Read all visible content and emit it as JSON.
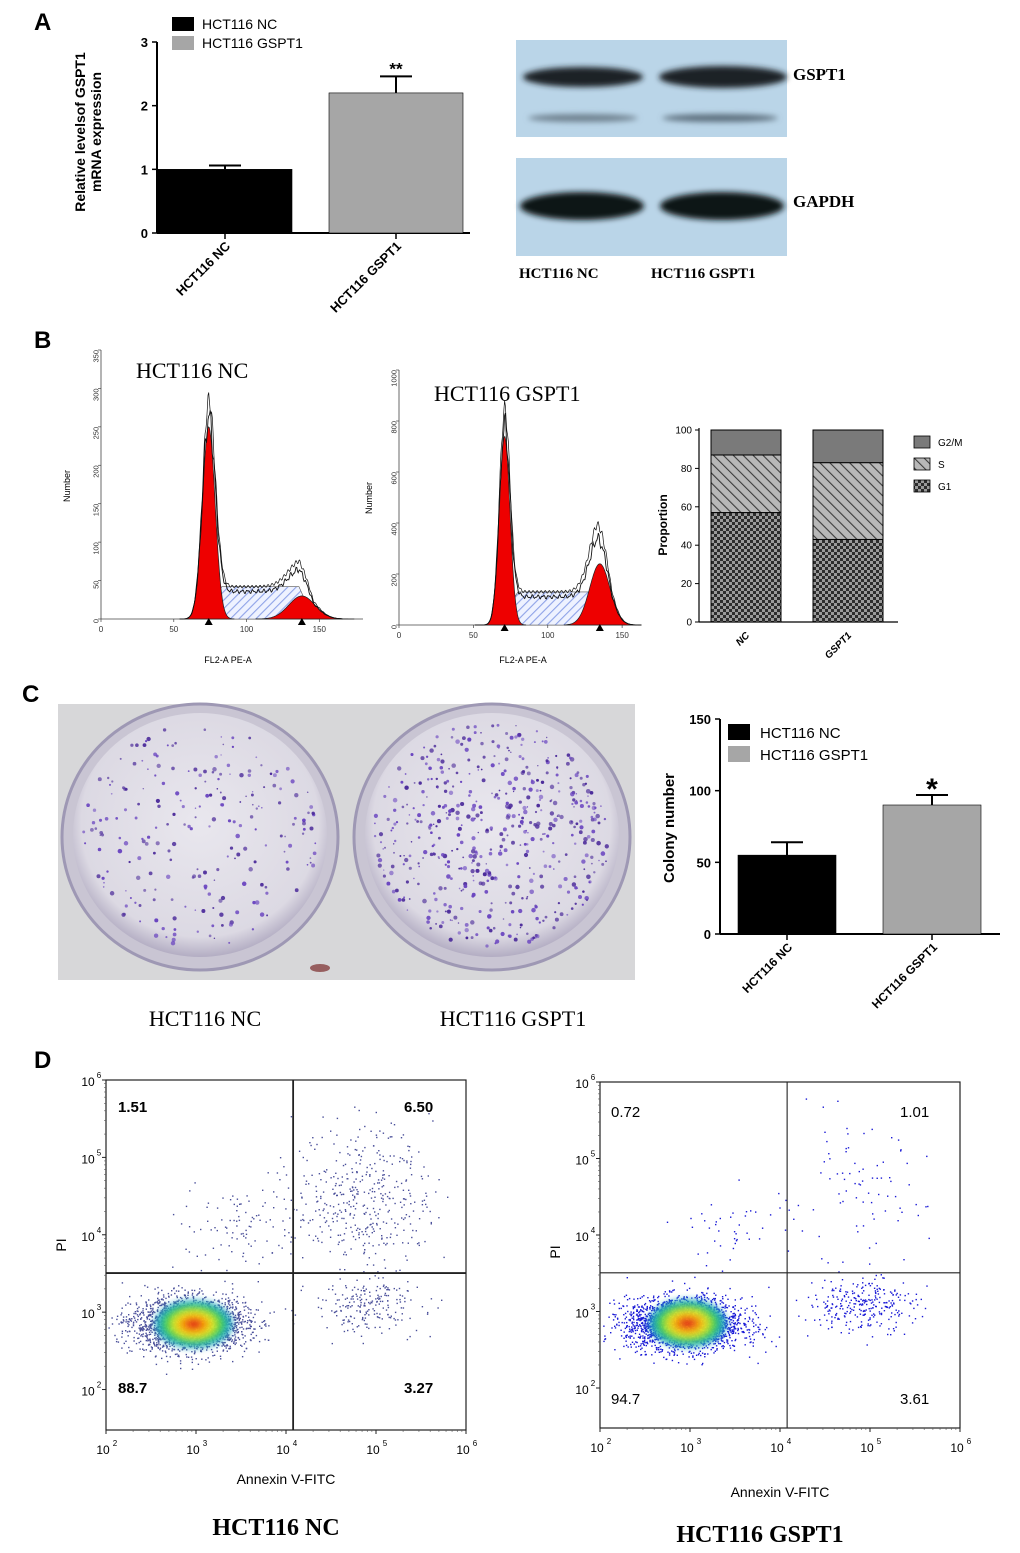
{
  "panel_labels": [
    "A",
    "B",
    "C",
    "D"
  ],
  "panel_a": {
    "ylabel_line1": "Relative levelsof GSPT1",
    "ylabel_line2": "mRNA expression",
    "legend": [
      "HCT116 NC",
      "HCT116 GSPT1"
    ],
    "significance": "**",
    "western_blot": {
      "band_labels": [
        "GSPT1",
        "GAPDH"
      ],
      "lane_labels": [
        "HCT116 NC",
        "HCT116 GSPT1"
      ]
    }
  },
  "panel_b": {
    "hist_left_title": "HCT116 NC",
    "hist_right_title": "HCT116 GSPT1",
    "hist_ylabel": "Number",
    "hist_xlabel": "FL2-A PE-A",
    "stack_ylabel": "Proportion",
    "stack_legend": [
      "G2/M",
      "S",
      "G1"
    ]
  },
  "panel_c": {
    "plate_labels": [
      "HCT116 NC",
      "HCT116 GSPT1"
    ],
    "ylabel": "Colony number",
    "legend": [
      "HCT116 NC",
      "HCT116 GSPT1"
    ],
    "significance": "*"
  },
  "panel_d": {
    "xlabel": "Annexin V-FITC",
    "ylabel": "PI",
    "left_title": "HCT116  NC",
    "right_title": "HCT116 GSPT1",
    "left_quadrants": {
      "upper_left": "1.51",
      "upper_right": "6.50",
      "lower_left": "88.7",
      "lower_right": "3.27"
    },
    "right_quadrants": {
      "upper_left": "0.72",
      "upper_right": "1.01",
      "lower_left": "94.7",
      "lower_right": "3.61"
    },
    "tick_exponents": [
      "2",
      "3",
      "4",
      "5",
      "6"
    ]
  },
  "colors": {
    "nc_bar": "#000000",
    "gspt1_bar": "#a6a6a6",
    "histogram_fill": "#ee0000",
    "s_phase_hatch": "#8fa3e8",
    "blot_background": "#b9d3e6"
  },
  "chart_data": [
    {
      "type": "bar",
      "panel": "A",
      "categories": [
        "HCT116 NC",
        "HCT116 GSPT1"
      ],
      "values": [
        1.0,
        2.2
      ],
      "errors": [
        0.06,
        0.26
      ],
      "ylabel": "Relative levelsof GSPT1 mRNA expression",
      "ylim": [
        0,
        3
      ],
      "yticks": [
        0,
        1,
        2,
        3
      ],
      "legend": "top-left"
    },
    {
      "type": "area",
      "panel": "B-left",
      "title": "HCT116 NC",
      "xlabel": "FL2-A PE-A",
      "ylabel": "Number",
      "xlim": [
        0,
        180
      ],
      "ylim": [
        0,
        350
      ],
      "xticks": [
        0,
        50,
        100,
        150
      ],
      "yticks": [
        0,
        50,
        100,
        150,
        200,
        250,
        300,
        350
      ],
      "g1_peak": {
        "x": 74,
        "y": 250
      },
      "g2_peak": {
        "x": 138,
        "y": 30
      },
      "envelope_max": 305
    },
    {
      "type": "area",
      "panel": "B-middle",
      "title": "HCT116 GSPT1",
      "xlabel": "FL2-A PE-A",
      "ylabel": "Number",
      "xlim": [
        0,
        160
      ],
      "ylim": [
        0,
        1000
      ],
      "xticks": [
        0,
        50,
        100,
        150
      ],
      "yticks": [
        0,
        200,
        400,
        600,
        800,
        1000
      ],
      "g1_peak": {
        "x": 71,
        "y": 740
      },
      "g2_peak": {
        "x": 135,
        "y": 240
      },
      "envelope_max": 860
    },
    {
      "type": "bar",
      "panel": "B-right",
      "stacked": true,
      "categories": [
        "NC",
        "GSPT1"
      ],
      "series": [
        {
          "name": "G1",
          "values": [
            57,
            43
          ]
        },
        {
          "name": "S",
          "values": [
            30,
            40
          ]
        },
        {
          "name": "G2/M",
          "values": [
            13,
            17
          ]
        }
      ],
      "ylabel": "Proportion",
      "ylim": [
        0,
        100
      ],
      "yticks": [
        0,
        20,
        40,
        60,
        80,
        100
      ],
      "legend": "top-right"
    },
    {
      "type": "bar",
      "panel": "C",
      "categories": [
        "HCT116 NC",
        "HCT116 GSPT1"
      ],
      "values": [
        55,
        90
      ],
      "errors": [
        9,
        7
      ],
      "ylabel": "Colony number",
      "ylim": [
        0,
        150
      ],
      "yticks": [
        0,
        50,
        100,
        150
      ],
      "legend": "top-left"
    },
    {
      "type": "scatter",
      "panel": "D-left",
      "title": "HCT116  NC",
      "xlabel": "Annexin V-FITC",
      "ylabel": "PI",
      "xscale": "log",
      "yscale": "log",
      "xlim": [
        100,
        1000000
      ],
      "ylim": [
        30,
        1000000
      ],
      "gates": {
        "x": 12000,
        "y": 3200
      },
      "quadrant_percent": {
        "upper_left": 1.51,
        "upper_right": 6.5,
        "lower_left": 88.7,
        "lower_right": 3.27
      }
    },
    {
      "type": "scatter",
      "panel": "D-right",
      "title": "HCT116 GSPT1",
      "xlabel": "Annexin V-FITC",
      "ylabel": "PI",
      "xscale": "log",
      "yscale": "log",
      "xlim": [
        100,
        1000000
      ],
      "ylim": [
        30,
        1000000
      ],
      "gates": {
        "x": 12000,
        "y": 3200
      },
      "quadrant_percent": {
        "upper_left": 0.72,
        "upper_right": 1.01,
        "lower_left": 94.7,
        "lower_right": 3.61
      }
    }
  ]
}
